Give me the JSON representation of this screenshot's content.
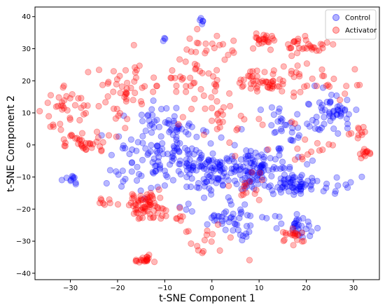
{
  "chart_data": {
    "type": "scatter",
    "title": "",
    "xlabel": "t-SNE Component 1",
    "ylabel": "t-SNE Component 2",
    "xlim": [
      -37.5,
      35.5
    ],
    "ylim": [
      -42,
      43
    ],
    "xticks": [
      -30,
      -20,
      -10,
      0,
      10,
      20,
      30
    ],
    "yticks": [
      -40,
      -30,
      -20,
      -10,
      0,
      10,
      20,
      30,
      40
    ],
    "xtick_labels": [
      "−30",
      "−20",
      "−10",
      "0",
      "10",
      "20",
      "30"
    ],
    "ytick_labels": [
      "−40",
      "−30",
      "−20",
      "−10",
      "0",
      "10",
      "20",
      "30",
      "40"
    ],
    "grid": false,
    "legend_position": "upper-right",
    "series": [
      {
        "name": "Control",
        "color": "#0000ff",
        "clusters": [
          {
            "cx": 16.5,
            "cy": -12,
            "sx": 2.5,
            "sy": 1.8,
            "n": 60
          },
          {
            "cx": 2,
            "cy": -8,
            "sx": 6,
            "sy": 4,
            "n": 120
          },
          {
            "cx": -7,
            "cy": -2,
            "sx": 4,
            "sy": 5,
            "n": 80
          },
          {
            "cx": 10,
            "cy": -7,
            "sx": 4,
            "sy": 3,
            "n": 70
          },
          {
            "cx": 25,
            "cy": 10,
            "sx": 3,
            "sy": 3,
            "n": 55
          },
          {
            "cx": -10,
            "cy": 8,
            "sx": 3,
            "sy": 3,
            "n": 30
          },
          {
            "cx": 18,
            "cy": -26,
            "sx": 2.5,
            "sy": 2,
            "n": 30
          },
          {
            "cx": 4,
            "cy": -22,
            "sx": 4,
            "sy": 2.5,
            "n": 40
          },
          {
            "cx": -16,
            "cy": -6,
            "sx": 4,
            "sy": 5,
            "n": 40
          },
          {
            "cx": -30,
            "cy": -11,
            "sx": 1.2,
            "sy": 1,
            "n": 10
          },
          {
            "cx": 15,
            "cy": 5,
            "sx": 3,
            "sy": 4,
            "n": 30
          },
          {
            "cx": -2,
            "cy": 39,
            "sx": 0.5,
            "sy": 0.4,
            "n": 5
          },
          {
            "cx": -10,
            "cy": 33,
            "sx": 0.3,
            "sy": 0.3,
            "n": 3
          },
          {
            "cx": 26,
            "cy": -12,
            "sx": 2,
            "sy": 2,
            "n": 12
          },
          {
            "cx": 7,
            "cy": -29,
            "sx": 1,
            "sy": 1,
            "n": 6
          }
        ]
      },
      {
        "name": "Activator",
        "color": "#ff0000",
        "clusters": [
          {
            "cx": -14,
            "cy": -19,
            "sx": 2,
            "sy": 2,
            "n": 70
          },
          {
            "cx": -14.5,
            "cy": -35.5,
            "sx": 1,
            "sy": 0.8,
            "n": 20
          },
          {
            "cx": 11.5,
            "cy": 33,
            "sx": 1.2,
            "sy": 0.8,
            "n": 20
          },
          {
            "cx": 20,
            "cy": 31,
            "sx": 2,
            "sy": 1.3,
            "n": 30
          },
          {
            "cx": 11,
            "cy": 20,
            "sx": 2.5,
            "sy": 1.8,
            "n": 40
          },
          {
            "cx": -27,
            "cy": 1,
            "sx": 3,
            "sy": 1.5,
            "n": 35
          },
          {
            "cx": -31,
            "cy": 12,
            "sx": 2.5,
            "sy": 2.5,
            "n": 30
          },
          {
            "cx": -18,
            "cy": 17,
            "sx": 4,
            "sy": 5,
            "n": 50
          },
          {
            "cx": 32.5,
            "cy": -2.5,
            "sx": 0.8,
            "sy": 0.8,
            "n": 12
          },
          {
            "cx": 31,
            "cy": 4,
            "sx": 1,
            "sy": 1,
            "n": 10
          },
          {
            "cx": 2,
            "cy": 30,
            "sx": 4,
            "sy": 2.5,
            "n": 25
          },
          {
            "cx": -5,
            "cy": 20,
            "sx": 4,
            "sy": 3,
            "n": 30
          },
          {
            "cx": 3,
            "cy": 10,
            "sx": 5,
            "sy": 5,
            "n": 40
          },
          {
            "cx": 20,
            "cy": 20,
            "sx": 4,
            "sy": 4,
            "n": 30
          },
          {
            "cx": 17,
            "cy": -29,
            "sx": 2,
            "sy": 1.5,
            "n": 20
          },
          {
            "cx": -22,
            "cy": -18,
            "sx": 1,
            "sy": 1,
            "n": 8
          },
          {
            "cx": 22,
            "cy": 0,
            "sx": 2,
            "sy": 2,
            "n": 12
          },
          {
            "cx": -6,
            "cy": -23,
            "sx": 1,
            "sy": 1.5,
            "n": 8
          },
          {
            "cx": 8,
            "cy": -13,
            "sx": 2,
            "sy": 2,
            "n": 15
          },
          {
            "cx": -34,
            "cy": 6,
            "sx": 1,
            "sy": 1,
            "n": 5
          },
          {
            "cx": 0,
            "cy": -30,
            "sx": 2,
            "sy": 3,
            "n": 10
          },
          {
            "cx": 31.5,
            "cy": 18.5,
            "sx": 0.4,
            "sy": 0.4,
            "n": 2
          },
          {
            "cx": 8,
            "cy": -36,
            "sx": 0.2,
            "sy": 0.2,
            "n": 1
          },
          {
            "cx": -2,
            "cy": -33,
            "sx": 0.5,
            "sy": 0.3,
            "n": 3
          }
        ]
      }
    ]
  }
}
